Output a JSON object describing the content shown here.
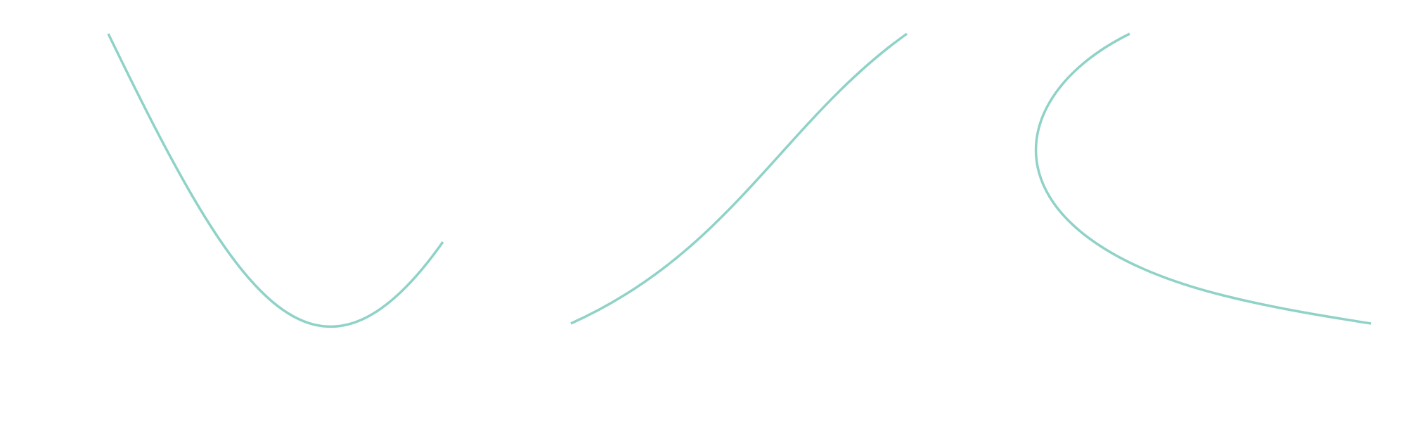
{
  "diagram": {
    "background": "#ffffff",
    "stroke_color": "#8fd2c7",
    "curves": [
      {
        "name": "curve-u-shape"
      },
      {
        "name": "curve-s-shape"
      },
      {
        "name": "curve-c-shape"
      }
    ]
  }
}
